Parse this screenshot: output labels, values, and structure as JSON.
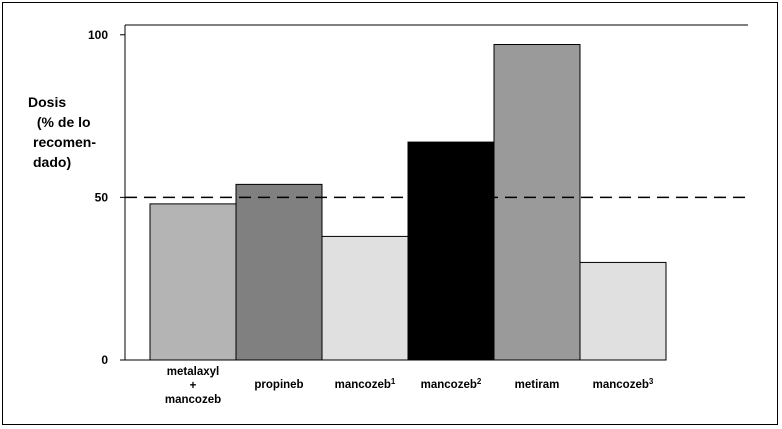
{
  "chart_data": {
    "type": "bar",
    "title": "",
    "ylabel_lines": [
      "Dosis",
      " (% de lo",
      "recomen-",
      "dado)"
    ],
    "ylim": [
      0,
      103
    ],
    "yticks": [
      "0",
      "50",
      "100"
    ],
    "categories": [
      {
        "lines": [
          "metalaxyl",
          "+",
          "mancozeb"
        ],
        "sup": ""
      },
      {
        "lines": [
          "propineb"
        ],
        "sup": ""
      },
      {
        "lines": [
          "mancozeb"
        ],
        "sup": "1"
      },
      {
        "lines": [
          "mancozeb"
        ],
        "sup": "2"
      },
      {
        "lines": [
          "metiram"
        ],
        "sup": ""
      },
      {
        "lines": [
          "mancozeb"
        ],
        "sup": "3"
      }
    ],
    "values": [
      48,
      54,
      38,
      67,
      97,
      30
    ],
    "colors": [
      "#b4b4b4",
      "#808080",
      "#e0e0e0",
      "#000000",
      "#9a9a9a",
      "#e0e0e0"
    ],
    "reference_lines": [
      {
        "value": 50,
        "style": "dashed"
      },
      {
        "value": 103,
        "style": "solid"
      }
    ],
    "grid": false,
    "legend": "none"
  }
}
